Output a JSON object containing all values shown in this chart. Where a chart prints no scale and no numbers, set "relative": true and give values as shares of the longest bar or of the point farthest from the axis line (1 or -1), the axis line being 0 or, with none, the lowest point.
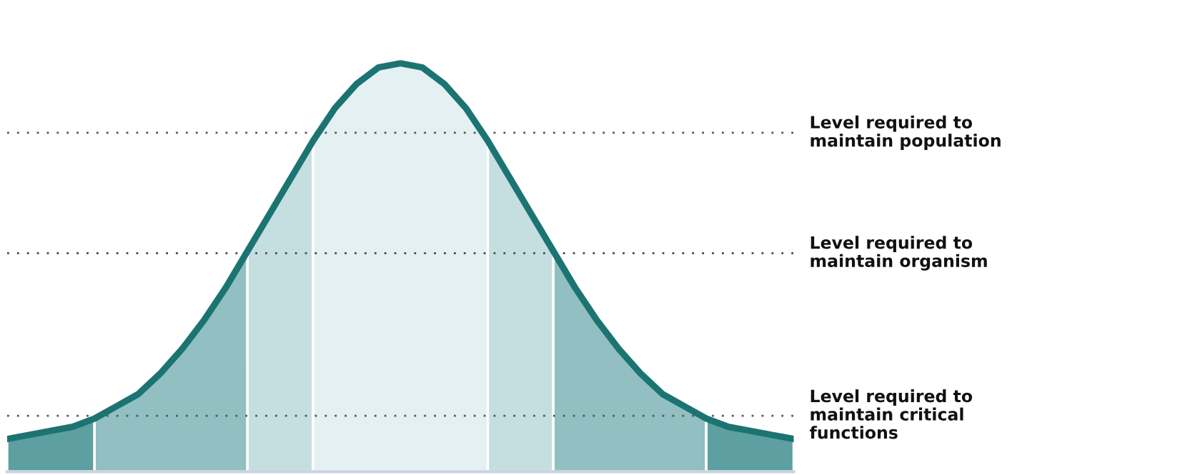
{
  "chart_data": {
    "type": "area",
    "relative": true,
    "categories": [
      null,
      null,
      null,
      null,
      null,
      null,
      null,
      null,
      null,
      null,
      null,
      null,
      null,
      null,
      null,
      null,
      null,
      null,
      null,
      null,
      null,
      null,
      null,
      null,
      null,
      null,
      null,
      null,
      null,
      null,
      null,
      null,
      null,
      null,
      null,
      null,
      null
    ],
    "series": [
      {
        "color": "#5e9fa1",
        "values": [
          0.08,
          0.09,
          0.1,
          0.11,
          0.13,
          null,
          null,
          null,
          null,
          null,
          null,
          null,
          null,
          null,
          null,
          null,
          null,
          null,
          null,
          null,
          null,
          null,
          null,
          null,
          null,
          null,
          null,
          null,
          null,
          null,
          null,
          null,
          null,
          null,
          null,
          null,
          null
        ]
      },
      {
        "color": "#92bfc1",
        "values": [
          null,
          null,
          null,
          null,
          0.13,
          0.16,
          0.19,
          0.24,
          0.3,
          0.37,
          0.45,
          0.54,
          null,
          null,
          null,
          null,
          null,
          null,
          null,
          null,
          null,
          null,
          null,
          null,
          null,
          null,
          null,
          null,
          null,
          null,
          null,
          null,
          null,
          null,
          null,
          null,
          null
        ]
      },
      {
        "color": "#c5dedf",
        "values": [
          null,
          null,
          null,
          null,
          null,
          null,
          null,
          null,
          null,
          null,
          null,
          0.54,
          0.63,
          0.72,
          0.81,
          null,
          null,
          null,
          null,
          null,
          null,
          null,
          null,
          null,
          null,
          null,
          null,
          null,
          null,
          null,
          null,
          null,
          null,
          null,
          null,
          null,
          null
        ]
      },
      {
        "color": "#e4f0f1",
        "values": [
          null,
          null,
          null,
          null,
          null,
          null,
          null,
          null,
          null,
          null,
          null,
          null,
          null,
          null,
          0.81,
          0.89,
          0.95,
          0.99,
          1.0,
          0.99,
          0.95,
          0.89,
          0.81,
          null,
          null,
          null,
          null,
          null,
          null,
          null,
          null,
          null,
          null,
          null,
          null,
          null,
          null
        ]
      },
      {
        "color": "#c5dedf",
        "values": [
          null,
          null,
          null,
          null,
          null,
          null,
          null,
          null,
          null,
          null,
          null,
          null,
          null,
          null,
          null,
          null,
          null,
          null,
          null,
          null,
          null,
          null,
          0.81,
          0.72,
          0.63,
          0.54,
          null,
          null,
          null,
          null,
          null,
          null,
          null,
          null,
          null,
          null,
          null
        ]
      },
      {
        "color": "#92bfc1",
        "values": [
          null,
          null,
          null,
          null,
          null,
          null,
          null,
          null,
          null,
          null,
          null,
          null,
          null,
          null,
          null,
          null,
          null,
          null,
          null,
          null,
          null,
          null,
          null,
          null,
          null,
          0.54,
          0.45,
          0.37,
          0.3,
          0.24,
          0.19,
          0.16,
          0.13,
          null,
          null,
          null,
          null
        ]
      },
      {
        "color": "#5e9fa1",
        "values": [
          null,
          null,
          null,
          null,
          null,
          null,
          null,
          null,
          null,
          null,
          null,
          null,
          null,
          null,
          null,
          null,
          null,
          null,
          null,
          null,
          null,
          null,
          null,
          null,
          null,
          null,
          null,
          null,
          null,
          null,
          null,
          null,
          0.13,
          0.11,
          0.1,
          0.09,
          0.08
        ]
      },
      {
        "type": "line",
        "color": "#1b7472",
        "values": [
          0.08,
          0.09,
          0.1,
          0.11,
          0.13,
          0.16,
          0.19,
          0.24,
          0.3,
          0.37,
          0.45,
          0.54,
          0.63,
          0.72,
          0.81,
          0.89,
          0.95,
          0.99,
          1.0,
          0.99,
          0.95,
          0.89,
          0.81,
          0.72,
          0.63,
          0.54,
          0.45,
          0.37,
          0.3,
          0.24,
          0.19,
          0.16,
          0.13,
          0.11,
          0.1,
          0.09,
          0.08
        ]
      }
    ],
    "ref_lines": [
      {
        "axis": "y",
        "value": 0.83,
        "label": "Level required to\nmaintain population",
        "color": "#555555",
        "line_style": "dotted"
      },
      {
        "axis": "y",
        "value": 0.535,
        "label": "Level required to\nmaintain organism",
        "color": "#555555",
        "line_style": "dotted"
      },
      {
        "axis": "y",
        "value": 0.137,
        "label": "Level required to\nmaintain critical\nfunctions",
        "color": "#555555",
        "line_style": "dotted"
      }
    ]
  }
}
